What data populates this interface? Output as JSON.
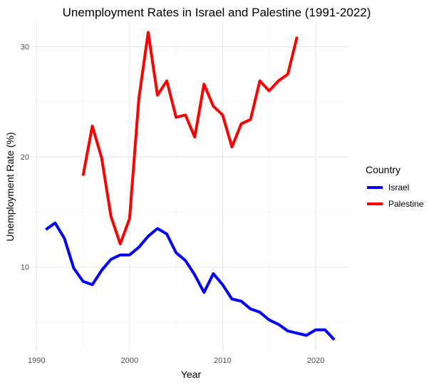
{
  "chart_data": {
    "type": "line",
    "title": "Unemployment Rates in Israel and Palestine (1991-2022)",
    "xlabel": "Year",
    "ylabel": "Unemployment Rate (%)",
    "xlim": [
      1989.6,
      2023.6
    ],
    "ylim": [
      2.4,
      32.3
    ],
    "x_ticks": [
      1990,
      2000,
      2010,
      2020
    ],
    "y_ticks": [
      10,
      20,
      30
    ],
    "grid": true,
    "legend": {
      "title": "Country",
      "position": "right"
    },
    "series": [
      {
        "name": "Israel",
        "color": "#0000ff",
        "x": [
          1991,
          1992,
          1993,
          1994,
          1995,
          1996,
          1997,
          1998,
          1999,
          2000,
          2001,
          2002,
          2003,
          2004,
          2005,
          2006,
          2007,
          2008,
          2009,
          2010,
          2011,
          2012,
          2013,
          2014,
          2015,
          2016,
          2017,
          2018,
          2019,
          2020,
          2021,
          2022
        ],
        "y": [
          13.4,
          14.0,
          12.6,
          9.9,
          8.7,
          8.4,
          9.7,
          10.7,
          11.1,
          11.1,
          11.8,
          12.8,
          13.5,
          13.0,
          11.3,
          10.6,
          9.3,
          7.7,
          9.4,
          8.4,
          7.1,
          6.9,
          6.2,
          5.9,
          5.2,
          4.8,
          4.2,
          4.0,
          3.8,
          4.3,
          4.3,
          3.4
        ]
      },
      {
        "name": "Palestine",
        "color": "#ff0000",
        "x": [
          1995,
          1996,
          1997,
          1998,
          1999,
          2000,
          2001,
          2002,
          2003,
          2004,
          2005,
          2006,
          2007,
          2008,
          2009,
          2010,
          2011,
          2012,
          2013,
          2014,
          2015,
          2016,
          2017,
          2018
        ],
        "y": [
          18.3,
          22.8,
          19.9,
          14.6,
          12.1,
          14.4,
          25.3,
          31.3,
          25.6,
          26.9,
          23.6,
          23.8,
          21.8,
          26.6,
          24.6,
          23.8,
          20.9,
          23.0,
          23.4,
          26.9,
          26.0,
          26.9,
          27.5,
          30.9
        ]
      }
    ]
  }
}
